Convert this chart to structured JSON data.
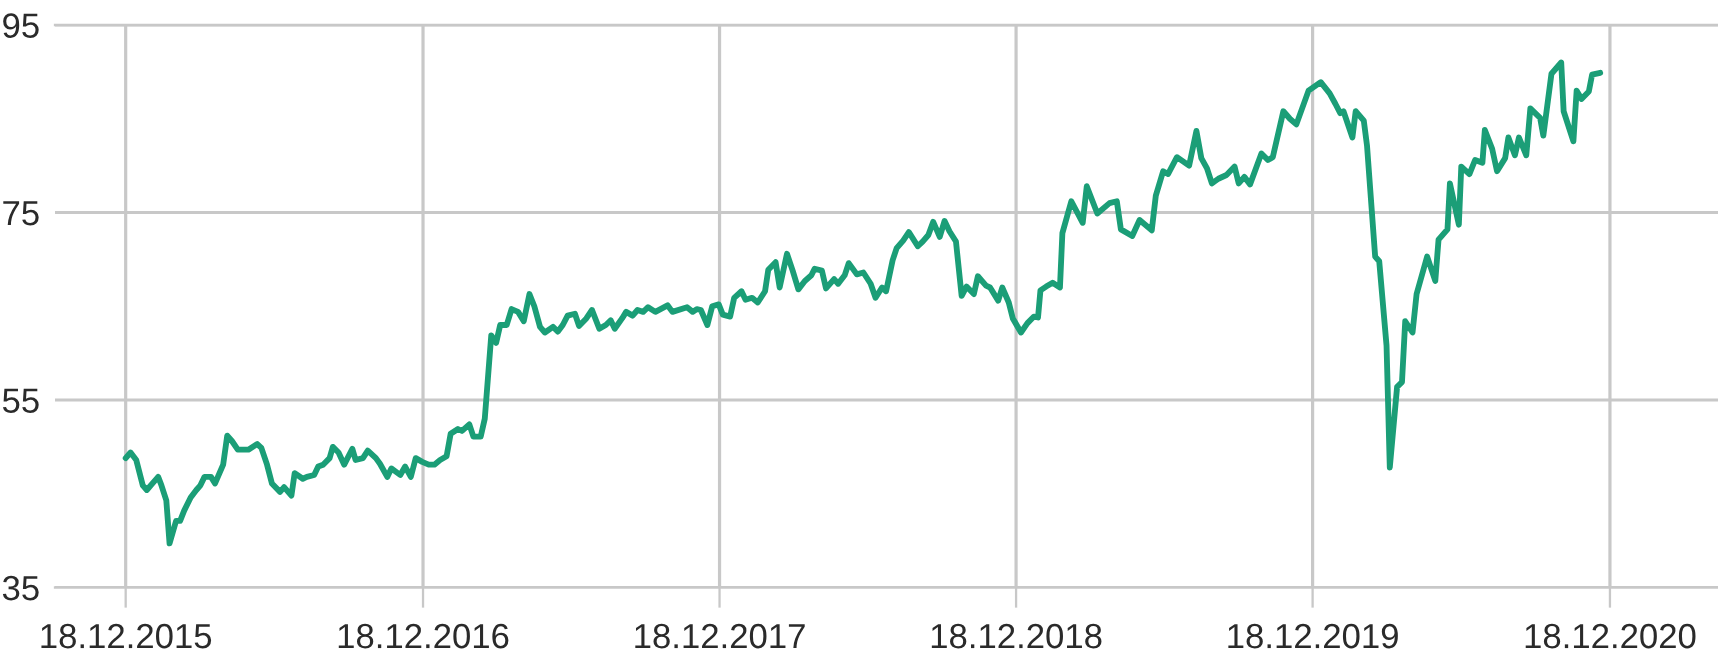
{
  "chart_data": {
    "type": "line",
    "color": "#1b9e77",
    "x": [
      "2015-12-18",
      "2015-12-24",
      "2015-12-31",
      "2016-01-08",
      "2016-01-13",
      "2016-01-20",
      "2016-01-27",
      "2016-01-31",
      "2016-02-06",
      "2016-02-10",
      "2016-02-18",
      "2016-02-23",
      "2016-02-28",
      "2016-03-07",
      "2016-03-14",
      "2016-03-19",
      "2016-03-24",
      "2016-04-01",
      "2016-04-06",
      "2016-04-16",
      "2016-04-21",
      "2016-04-27",
      "2016-05-04",
      "2016-05-17",
      "2016-05-28",
      "2016-06-02",
      "2016-06-09",
      "2016-06-15",
      "2016-06-25",
      "2016-06-30",
      "2016-07-09",
      "2016-07-13",
      "2016-07-23",
      "2016-07-28",
      "2016-08-06",
      "2016-08-11",
      "2016-08-17",
      "2016-08-25",
      "2016-08-29",
      "2016-09-05",
      "2016-09-12",
      "2016-09-22",
      "2016-09-26",
      "2016-10-05",
      "2016-10-11",
      "2016-10-21",
      "2016-10-26",
      "2016-11-04",
      "2016-11-09",
      "2016-11-20",
      "2016-11-26",
      "2016-12-03",
      "2016-12-09",
      "2016-12-17",
      "2016-12-25",
      "2017-01-01",
      "2017-01-08",
      "2017-01-16",
      "2017-01-21",
      "2017-01-30",
      "2017-02-04",
      "2017-02-13",
      "2017-02-18",
      "2017-02-27",
      "2017-03-04",
      "2017-03-12",
      "2017-03-18",
      "2017-03-23",
      "2017-03-31",
      "2017-04-06",
      "2017-04-14",
      "2017-04-21",
      "2017-04-28",
      "2017-05-04",
      "2017-05-11",
      "2017-05-17",
      "2017-05-27",
      "2017-06-02",
      "2017-06-08",
      "2017-06-14",
      "2017-06-23",
      "2017-06-28",
      "2017-07-07",
      "2017-07-14",
      "2017-07-23",
      "2017-07-31",
      "2017-08-06",
      "2017-08-11",
      "2017-08-20",
      "2017-08-25",
      "2017-09-02",
      "2017-09-08",
      "2017-09-15",
      "2017-09-21",
      "2017-09-30",
      "2017-10-15",
      "2017-10-21",
      "2017-11-08",
      "2017-11-15",
      "2017-11-20",
      "2017-11-25",
      "2017-12-03",
      "2017-12-09",
      "2017-12-17",
      "2017-12-22",
      "2017-12-31",
      "2018-01-05",
      "2018-01-14",
      "2018-01-19",
      "2018-01-27",
      "2018-02-03",
      "2018-02-12",
      "2018-02-16",
      "2018-02-25",
      "2018-03-02",
      "2018-03-11",
      "2018-03-18",
      "2018-03-25",
      "2018-04-02",
      "2018-04-10",
      "2018-04-14",
      "2018-04-23",
      "2018-04-28",
      "2018-05-08",
      "2018-05-13",
      "2018-05-21",
      "2018-05-26",
      "2018-06-05",
      "2018-06-13",
      "2018-06-22",
      "2018-06-28",
      "2018-07-06",
      "2018-07-11",
      "2018-07-19",
      "2018-07-24",
      "2018-08-01",
      "2018-08-08",
      "2018-08-19",
      "2018-08-25",
      "2018-09-01",
      "2018-09-07",
      "2018-09-15",
      "2018-09-21",
      "2018-09-27",
      "2018-10-05",
      "2018-10-12",
      "2018-10-18",
      "2018-10-27",
      "2018-11-01",
      "2018-11-11",
      "2018-11-16",
      "2018-11-26",
      "2018-12-01",
      "2018-12-09",
      "2018-12-14",
      "2018-12-24",
      "2019-01-01",
      "2019-01-09",
      "2019-01-14",
      "2019-01-17",
      "2019-01-24",
      "2019-02-01",
      "2019-02-10",
      "2019-02-13",
      "2019-02-24",
      "2019-03-10",
      "2019-03-15",
      "2019-03-28",
      "2019-04-12",
      "2019-04-21",
      "2019-04-26",
      "2019-05-10",
      "2019-05-19",
      "2019-06-03",
      "2019-06-08",
      "2019-06-17",
      "2019-06-23",
      "2019-07-04",
      "2019-07-19",
      "2019-07-28",
      "2019-08-03",
      "2019-08-10",
      "2019-08-16",
      "2019-08-24",
      "2019-09-03",
      "2019-09-13",
      "2019-09-18",
      "2019-09-25",
      "2019-10-02",
      "2019-10-16",
      "2019-10-24",
      "2019-10-30",
      "2019-11-12",
      "2019-11-20",
      "2019-11-28",
      "2019-12-13",
      "2019-12-28",
      "2020-01-08",
      "2020-01-15",
      "2020-01-21",
      "2020-01-25",
      "2020-02-05",
      "2020-02-09",
      "2020-02-19",
      "2020-02-23",
      "2020-03-04",
      "2020-03-09",
      "2020-03-18",
      "2020-03-22",
      "2020-03-31",
      "2020-04-06",
      "2020-04-10",
      "2020-04-19",
      "2020-04-24",
      "2020-05-07",
      "2020-05-17",
      "2020-05-21",
      "2020-06-01",
      "2020-06-04",
      "2020-06-15",
      "2020-06-18",
      "2020-06-28",
      "2020-07-05",
      "2020-07-14",
      "2020-07-17",
      "2020-07-26",
      "2020-08-01",
      "2020-08-11",
      "2020-08-15",
      "2020-08-23",
      "2020-08-28",
      "2020-09-06",
      "2020-09-11",
      "2020-09-23",
      "2020-09-27",
      "2020-10-07",
      "2020-10-19",
      "2020-10-22",
      "2020-11-03",
      "2020-11-07",
      "2020-11-13",
      "2020-11-22",
      "2020-11-26",
      "2020-12-06"
    ],
    "values": [
      48.8,
      49.4,
      48.6,
      45.9,
      45.4,
      46.1,
      46.8,
      45.9,
      44.3,
      39.7,
      42.1,
      42.1,
      43.2,
      44.6,
      45.4,
      45.9,
      46.8,
      46.8,
      46.1,
      48.1,
      51.2,
      50.6,
      49.7,
      49.7,
      50.3,
      49.9,
      48.1,
      46.1,
      45.2,
      45.7,
      44.8,
      47.2,
      46.6,
      46.8,
      47.0,
      47.9,
      48.1,
      48.8,
      50.0,
      49.4,
      48.1,
      49.8,
      48.6,
      48.8,
      49.6,
      48.8,
      48.2,
      46.8,
      47.7,
      47.0,
      47.9,
      46.8,
      48.8,
      48.4,
      48.1,
      48.1,
      48.6,
      49.0,
      51.4,
      51.9,
      51.7,
      52.4,
      51.1,
      51.1,
      53.0,
      61.9,
      61.1,
      63.0,
      63.0,
      64.7,
      64.4,
      63.4,
      66.3,
      65.0,
      62.8,
      62.2,
      62.8,
      62.3,
      63.0,
      64.0,
      64.2,
      62.9,
      63.7,
      64.6,
      62.6,
      63.0,
      63.5,
      62.6,
      63.7,
      64.4,
      64.0,
      64.6,
      64.4,
      64.9,
      64.4,
      65.1,
      64.4,
      64.9,
      64.4,
      64.7,
      64.6,
      63.0,
      65.0,
      65.2,
      64.1,
      63.9,
      65.9,
      66.6,
      65.7,
      65.9,
      65.4,
      66.6,
      68.9,
      69.7,
      67.0,
      70.6,
      68.8,
      66.8,
      67.7,
      68.3,
      69.0,
      68.8,
      66.9,
      67.9,
      67.4,
      68.3,
      69.6,
      68.4,
      68.6,
      67.4,
      65.9,
      67.0,
      66.6,
      69.9,
      71.2,
      72.0,
      72.9,
      71.4,
      71.9,
      72.6,
      74.0,
      72.4,
      74.1,
      73.0,
      71.9,
      66.1,
      67.1,
      66.3,
      68.2,
      67.2,
      67.0,
      65.6,
      67.0,
      65.4,
      63.7,
      62.2,
      63.2,
      63.9,
      63.8,
      66.7,
      67.1,
      67.5,
      67.0,
      72.8,
      76.2,
      73.9,
      77.8,
      74.9,
      76.0,
      76.2,
      73.2,
      72.5,
      74.2,
      73.1,
      76.8,
      79.4,
      79.1,
      80.9,
      80.0,
      83.7,
      80.8,
      79.7,
      78.1,
      78.6,
      79.0,
      79.9,
      78.1,
      78.8,
      78.0,
      81.3,
      80.6,
      80.9,
      85.8,
      85.0,
      84.4,
      88.0,
      88.9,
      87.7,
      86.6,
      85.6,
      85.8,
      83.0,
      85.8,
      84.8,
      82.1,
      70.3,
      69.8,
      60.8,
      47.8,
      56.4,
      56.9,
      63.4,
      62.2,
      66.3,
      70.3,
      67.7,
      72.1,
      73.2,
      78.1,
      73.7,
      79.9,
      79.1,
      80.6,
      80.3,
      83.8,
      81.8,
      79.4,
      80.8,
      83.0,
      81.1,
      83.0,
      81.1,
      86.1,
      85.1,
      83.2,
      89.8,
      91.0,
      85.8,
      82.6,
      88.0,
      87.1,
      87.9,
      89.7,
      89.9
    ],
    "xlim": [
      "2015-09-22",
      "2021-04-30"
    ],
    "xticks": [
      {
        "value": "2015-12-18",
        "label": "18.12.2015"
      },
      {
        "value": "2016-12-18",
        "label": "18.12.2016"
      },
      {
        "value": "2017-12-18",
        "label": "18.12.2017"
      },
      {
        "value": "2018-12-18",
        "label": "18.12.2018"
      },
      {
        "value": "2019-12-18",
        "label": "18.12.2019"
      },
      {
        "value": "2020-12-18",
        "label": "18.12.2020"
      }
    ],
    "ylim": [
      35,
      95
    ],
    "yticks": [
      35,
      55,
      75,
      95
    ],
    "grid": true
  }
}
